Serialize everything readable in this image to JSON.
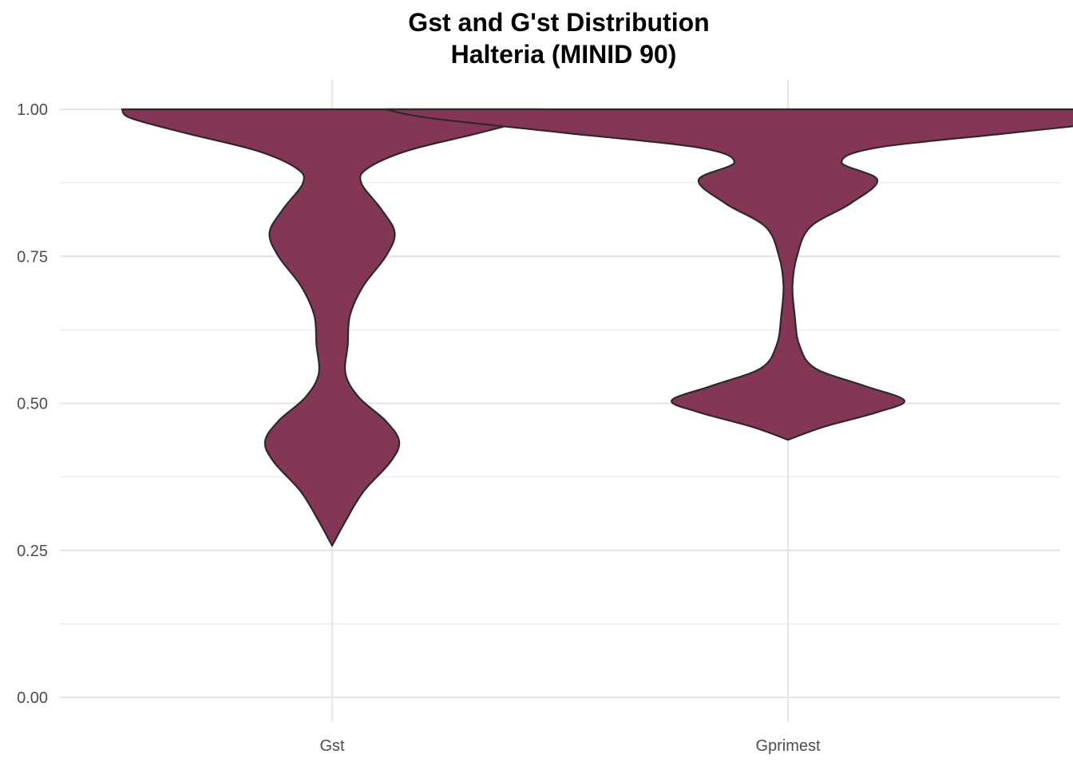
{
  "chart_data": {
    "type": "violin",
    "title": "Gst and G'st Distribution",
    "subtitle": "Halteria (MINID 90)",
    "xlabel": "",
    "ylabel": "",
    "ylim": [
      0,
      1.05
    ],
    "y_ticks": [
      0.0,
      0.25,
      0.5,
      0.75,
      1.0
    ],
    "y_tick_labels": [
      "0.00",
      "0.25",
      "0.50",
      "0.75",
      "1.00"
    ],
    "categories": [
      "Gst",
      "Gprimest"
    ],
    "grid": true,
    "fill_color": "#833655",
    "outline_color": "#2a2a2a",
    "violins": [
      {
        "category": "Gst",
        "min": 0.258,
        "max": 1.0,
        "density": [
          [
            0.258,
            0.0
          ],
          [
            0.3,
            0.03
          ],
          [
            0.35,
            0.07
          ],
          [
            0.4,
            0.13
          ],
          [
            0.435,
            0.15
          ],
          [
            0.47,
            0.12
          ],
          [
            0.51,
            0.06
          ],
          [
            0.55,
            0.03
          ],
          [
            0.6,
            0.035
          ],
          [
            0.65,
            0.04
          ],
          [
            0.7,
            0.07
          ],
          [
            0.75,
            0.12
          ],
          [
            0.79,
            0.14
          ],
          [
            0.83,
            0.11
          ],
          [
            0.875,
            0.065
          ],
          [
            0.9,
            0.08
          ],
          [
            0.93,
            0.17
          ],
          [
            0.96,
            0.33
          ],
          [
            0.985,
            0.45
          ],
          [
            1.0,
            0.47
          ]
        ]
      },
      {
        "category": "Gprimest",
        "min": 0.438,
        "max": 1.0,
        "density": [
          [
            0.438,
            0.0
          ],
          [
            0.46,
            0.08
          ],
          [
            0.485,
            0.2
          ],
          [
            0.505,
            0.26
          ],
          [
            0.53,
            0.17
          ],
          [
            0.56,
            0.06
          ],
          [
            0.6,
            0.025
          ],
          [
            0.65,
            0.015
          ],
          [
            0.7,
            0.01
          ],
          [
            0.75,
            0.02
          ],
          [
            0.8,
            0.05
          ],
          [
            0.84,
            0.14
          ],
          [
            0.88,
            0.2
          ],
          [
            0.91,
            0.12
          ],
          [
            0.935,
            0.2
          ],
          [
            0.96,
            0.5
          ],
          [
            0.985,
            0.8
          ],
          [
            1.0,
            0.9
          ]
        ]
      }
    ]
  }
}
